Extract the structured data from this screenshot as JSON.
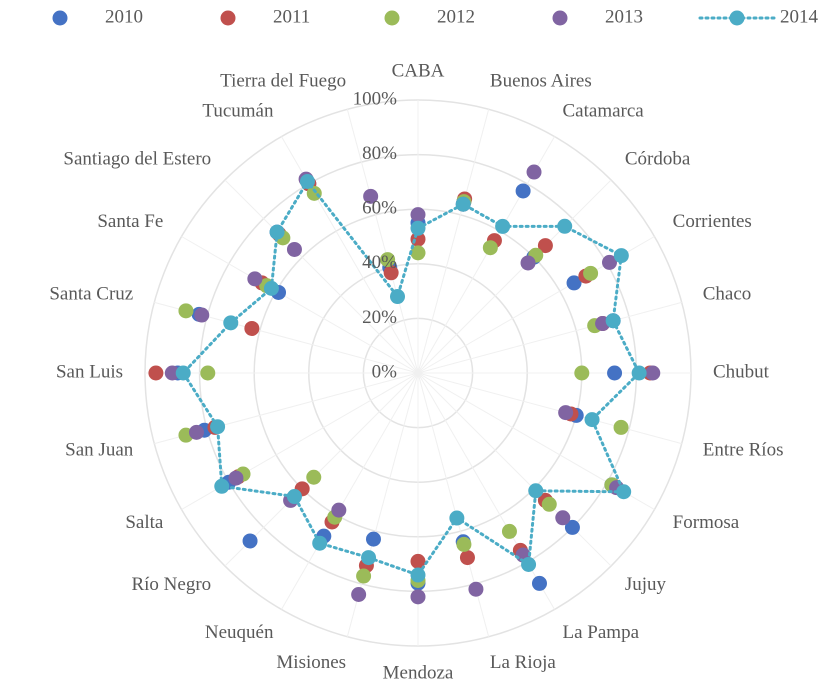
{
  "chart_data": {
    "type": "radar",
    "categories": [
      "CABA",
      "Buenos Aires",
      "Catamarca",
      "Córdoba",
      "Corrientes",
      "Chaco",
      "Chubut",
      "Entre Ríos",
      "Formosa",
      "Jujuy",
      "La Pampa",
      "La Rioja",
      "Mendoza",
      "Misiones",
      "Neuquén",
      "Río Negro",
      "Salta",
      "San Juan",
      "San Luis",
      "Santa Cruz",
      "Santa Fe",
      "Santiago del Estero",
      "Tucumán",
      "Tierra del Fuego"
    ],
    "series": [
      {
        "name": "2010",
        "color": "#4472c4",
        "line": false,
        "values": [
          55,
          65,
          77,
          60,
          66,
          74,
          72,
          60,
          82,
          80,
          89,
          64,
          77,
          63,
          69,
          87,
          80,
          81,
          88,
          83,
          59,
          73,
          80,
          40
        ]
      },
      {
        "name": "2011",
        "color": "#c0504d",
        "line": false,
        "values": [
          49,
          66,
          56,
          66,
          71,
          70,
          85,
          58,
          83,
          66,
          75,
          70,
          69,
          73,
          63,
          60,
          76,
          77,
          96,
          63,
          66,
          72,
          80,
          38
        ]
      },
      {
        "name": "2012",
        "color": "#9bbb59",
        "line": false,
        "values": [
          44,
          65,
          53,
          61,
          73,
          67,
          60,
          77,
          82,
          68,
          67,
          65,
          76,
          77,
          61,
          54,
          74,
          88,
          77,
          88,
          64,
          70,
          76,
          43
        ]
      },
      {
        "name": "2013",
        "color": "#8064a2",
        "line": false,
        "values": [
          58,
          64,
          85,
          57,
          81,
          70,
          86,
          56,
          84,
          75,
          77,
          82,
          82,
          84,
          58,
          66,
          77,
          84,
          90,
          82,
          69,
          64,
          82,
          67
        ]
      },
      {
        "name": "2014",
        "color": "#4bacc6",
        "line": true,
        "values": [
          53,
          64,
          62,
          76,
          86,
          74,
          81,
          66,
          87,
          61,
          81,
          55,
          74,
          70,
          72,
          64,
          83,
          76,
          86,
          71,
          62,
          73,
          81,
          29
        ]
      }
    ],
    "rlim": [
      0,
      100
    ],
    "rticks": [
      {
        "value": 0,
        "label": "0%"
      },
      {
        "value": 20,
        "label": "20%"
      },
      {
        "value": 40,
        "label": "40%"
      },
      {
        "value": 60,
        "label": "60%"
      },
      {
        "value": 80,
        "label": "80%"
      },
      {
        "value": 100,
        "label": "100%"
      }
    ],
    "grid": true,
    "legend": "top"
  }
}
